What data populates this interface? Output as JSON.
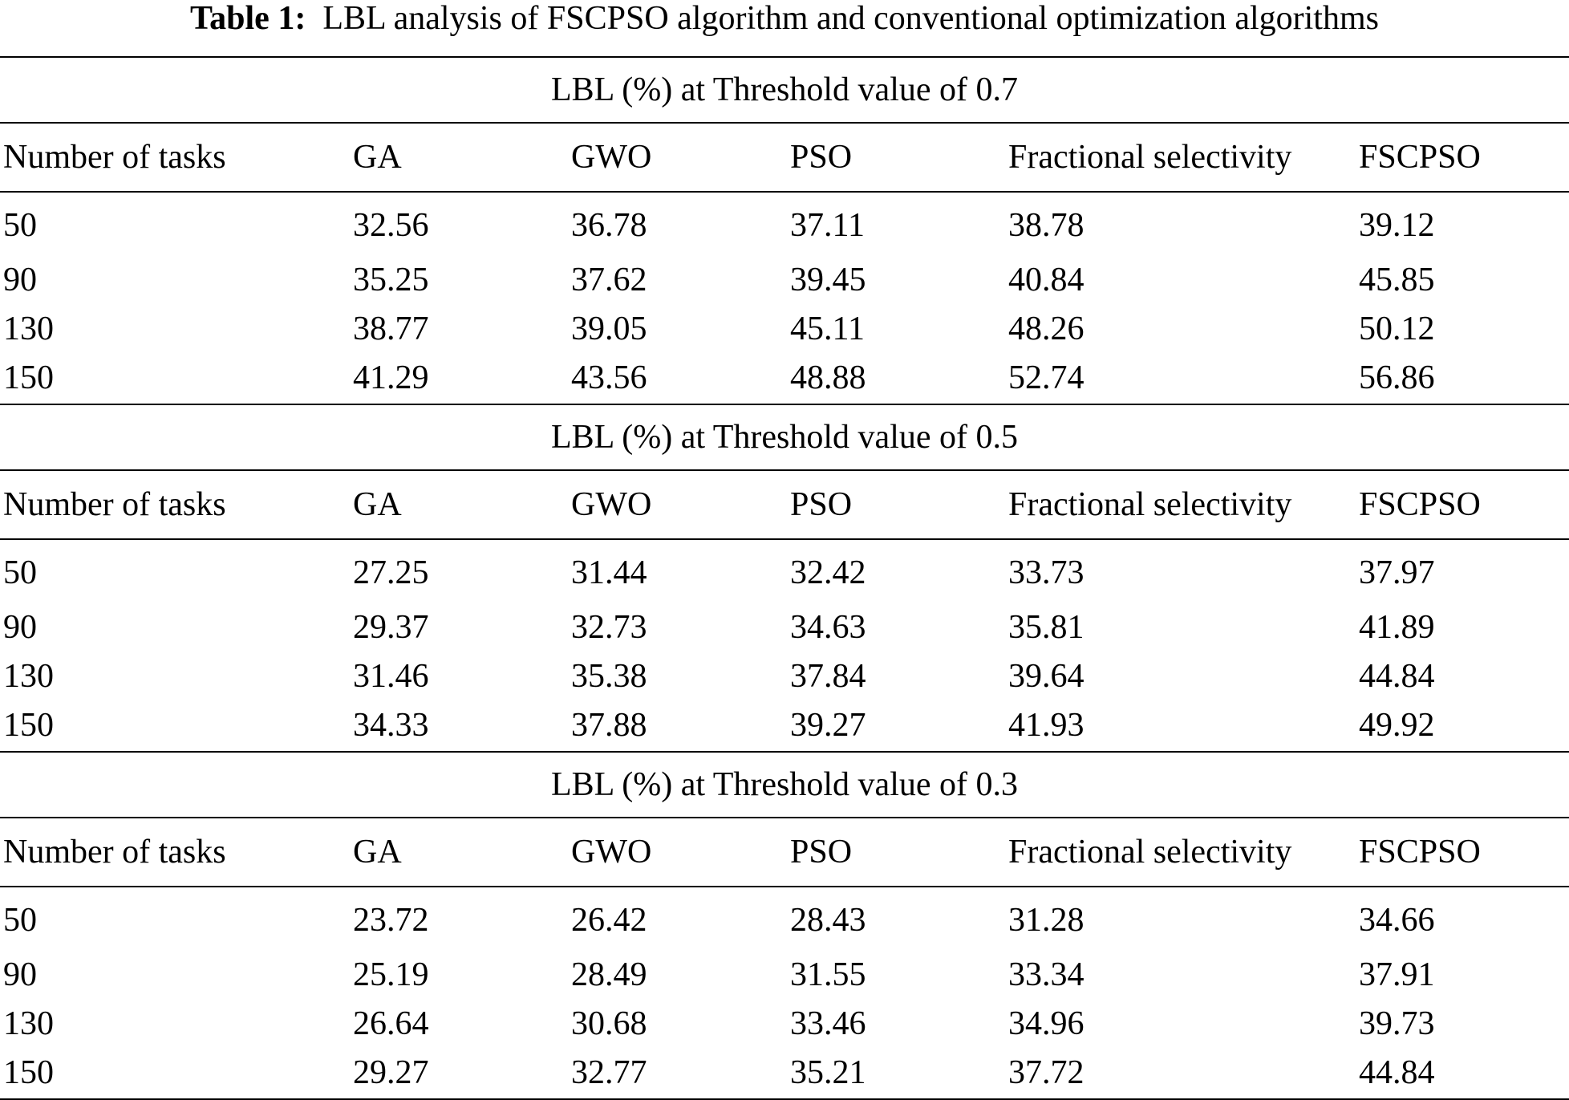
{
  "caption": {
    "label": "Table 1:",
    "text": "LBL analysis of FSCPSO algorithm and conventional optimization algorithms"
  },
  "sections": [
    {
      "title": "LBL (%) at Threshold value of 0.7",
      "header": [
        "Number of tasks",
        "GA",
        "GWO",
        "PSO",
        "Fractional selectivity",
        "FSCPSO"
      ],
      "rows": [
        [
          "50",
          "32.56",
          "36.78",
          "37.11",
          "38.78",
          "39.12"
        ],
        [
          "90",
          "35.25",
          "37.62",
          "39.45",
          "40.84",
          "45.85"
        ],
        [
          "130",
          "38.77",
          "39.05",
          "45.11",
          "48.26",
          "50.12"
        ],
        [
          "150",
          "41.29",
          "43.56",
          "48.88",
          "52.74",
          "56.86"
        ]
      ]
    },
    {
      "title": "LBL (%) at Threshold value of 0.5",
      "header": [
        "Number of tasks",
        "GA",
        "GWO",
        "PSO",
        "Fractional selectivity",
        "FSCPSO"
      ],
      "rows": [
        [
          "50",
          "27.25",
          "31.44",
          "32.42",
          "33.73",
          "37.97"
        ],
        [
          "90",
          "29.37",
          "32.73",
          "34.63",
          "35.81",
          "41.89"
        ],
        [
          "130",
          "31.46",
          "35.38",
          "37.84",
          "39.64",
          "44.84"
        ],
        [
          "150",
          "34.33",
          "37.88",
          "39.27",
          "41.93",
          "49.92"
        ]
      ]
    },
    {
      "title": "LBL (%) at Threshold value of 0.3",
      "header": [
        "Number of tasks",
        "GA",
        "GWO",
        "PSO",
        "Fractional selectivity",
        "FSCPSO"
      ],
      "rows": [
        [
          "50",
          "23.72",
          "26.42",
          "28.43",
          "31.28",
          "34.66"
        ],
        [
          "90",
          "25.19",
          "28.49",
          "31.55",
          "33.34",
          "37.91"
        ],
        [
          "130",
          "26.64",
          "30.68",
          "33.46",
          "34.96",
          "39.73"
        ],
        [
          "150",
          "29.27",
          "32.77",
          "35.21",
          "37.72",
          "44.84"
        ]
      ]
    }
  ]
}
